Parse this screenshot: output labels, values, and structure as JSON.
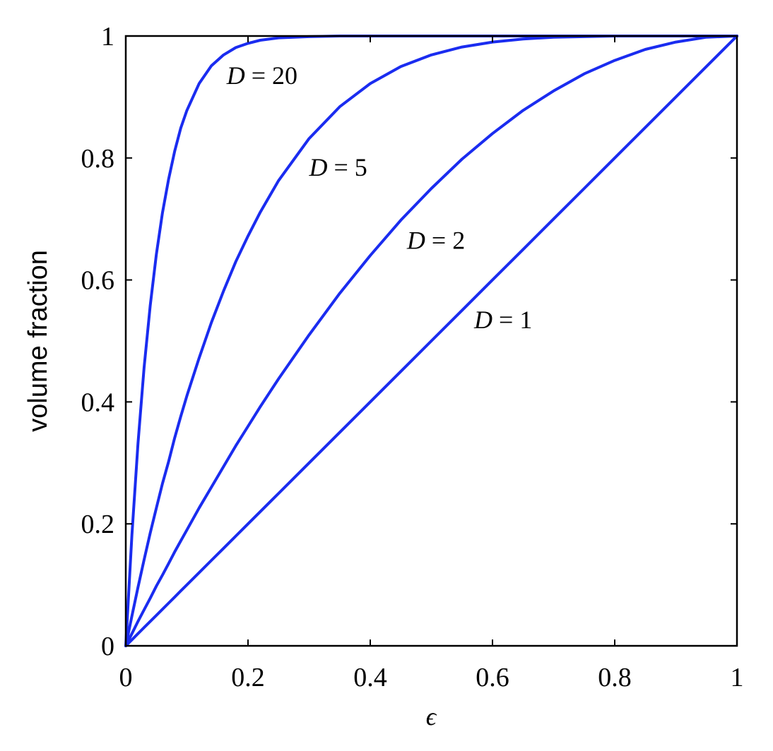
{
  "chart_data": {
    "type": "line",
    "title": "",
    "xlabel": "ϵ",
    "ylabel": "volume fraction",
    "xlim": [
      0,
      1
    ],
    "ylim": [
      0,
      1
    ],
    "grid": false,
    "line_color": "#1a2cf0",
    "x_ticks": [
      0,
      0.2,
      0.4,
      0.6,
      0.8,
      1
    ],
    "y_ticks": [
      0,
      0.2,
      0.4,
      0.6,
      0.8,
      1
    ],
    "x_tick_labels": [
      "0",
      "0.2",
      "0.4",
      "0.6",
      "0.8",
      "1"
    ],
    "y_tick_labels": [
      "0",
      "0.2",
      "0.4",
      "0.6",
      "0.8",
      "1"
    ],
    "x": [
      0,
      0.01,
      0.02,
      0.03,
      0.04,
      0.05,
      0.06,
      0.07,
      0.08,
      0.09,
      0.1,
      0.12,
      0.14,
      0.16,
      0.18,
      0.2,
      0.22,
      0.25,
      0.3,
      0.35,
      0.4,
      0.45,
      0.5,
      0.55,
      0.6,
      0.65,
      0.7,
      0.75,
      0.8,
      0.85,
      0.9,
      0.95,
      1.0
    ],
    "series": [
      {
        "name": "D = 1",
        "label_var": "D",
        "label_rest": " = 1",
        "values": [
          0,
          0.01,
          0.02,
          0.03,
          0.04,
          0.05,
          0.06,
          0.07,
          0.08,
          0.09,
          0.1,
          0.12,
          0.14,
          0.16,
          0.18,
          0.2,
          0.22,
          0.25,
          0.3,
          0.35,
          0.4,
          0.45,
          0.5,
          0.55,
          0.6,
          0.65,
          0.7,
          0.75,
          0.8,
          0.85,
          0.9,
          0.95,
          1.0
        ],
        "label_at": [
          0.57,
          0.535
        ]
      },
      {
        "name": "D = 2",
        "label_var": "D",
        "label_rest": " = 2",
        "values": [
          0,
          0.02,
          0.04,
          0.059,
          0.078,
          0.098,
          0.116,
          0.135,
          0.154,
          0.172,
          0.19,
          0.226,
          0.26,
          0.294,
          0.328,
          0.36,
          0.392,
          0.438,
          0.51,
          0.578,
          0.64,
          0.698,
          0.75,
          0.798,
          0.84,
          0.878,
          0.91,
          0.938,
          0.96,
          0.978,
          0.99,
          0.998,
          1.0
        ],
        "label_at": [
          0.46,
          0.665
        ]
      },
      {
        "name": "D = 5",
        "label_var": "D",
        "label_rest": " = 5",
        "values": [
          0,
          0.049,
          0.096,
          0.141,
          0.185,
          0.226,
          0.266,
          0.302,
          0.341,
          0.376,
          0.41,
          0.472,
          0.53,
          0.582,
          0.63,
          0.672,
          0.711,
          0.763,
          0.832,
          0.884,
          0.922,
          0.95,
          0.969,
          0.982,
          0.99,
          0.995,
          0.998,
          0.999,
          1.0,
          1.0,
          1.0,
          1.0,
          1.0
        ],
        "label_at": [
          0.3,
          0.785
        ]
      },
      {
        "name": "D = 20",
        "label_var": "D",
        "label_rest": " = 20",
        "values": [
          0,
          0.182,
          0.332,
          0.456,
          0.558,
          0.642,
          0.71,
          0.765,
          0.811,
          0.849,
          0.878,
          0.922,
          0.951,
          0.969,
          0.981,
          0.988,
          0.993,
          0.997,
          0.999,
          1.0,
          1.0,
          1.0,
          1.0,
          1.0,
          1.0,
          1.0,
          1.0,
          1.0,
          1.0,
          1.0,
          1.0,
          1.0,
          1.0
        ],
        "label_at": [
          0.165,
          0.935
        ]
      }
    ]
  }
}
